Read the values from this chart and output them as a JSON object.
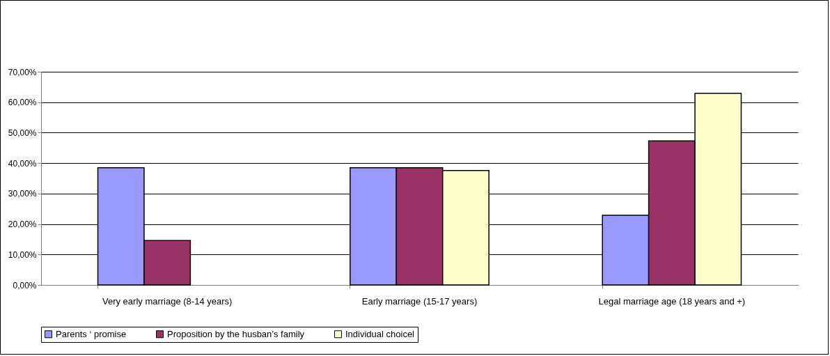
{
  "chart_data": {
    "type": "bar",
    "categories": [
      "Very early marriage (8-14 years)",
      "Early marriage (15-17 years)",
      "Legal marriage age (18 years and +)"
    ],
    "series": [
      {
        "name": "Parents ‘ promise",
        "color": "#9999ff",
        "values": [
          38.5,
          38.5,
          22.9
        ]
      },
      {
        "name": "Proposition by the husban’s family",
        "color": "#993366",
        "values": [
          14.6,
          38.5,
          47.3
        ]
      },
      {
        "name": "Individual choicel",
        "color": "#ffffcc",
        "values": [
          null,
          37.6,
          62.9
        ]
      }
    ],
    "ylim": [
      0,
      70
    ],
    "yticks": [
      {
        "value": 0,
        "label": "0,00%"
      },
      {
        "value": 10,
        "label": "10,00%"
      },
      {
        "value": 20,
        "label": "20,00%"
      },
      {
        "value": 30,
        "label": "30,00%"
      },
      {
        "value": 40,
        "label": "40,00%"
      },
      {
        "value": 50,
        "label": "50,00%"
      },
      {
        "value": 60,
        "label": "60,00%"
      },
      {
        "value": 70,
        "label": "70,00%"
      }
    ],
    "grid": "y",
    "legend": "bottom"
  }
}
